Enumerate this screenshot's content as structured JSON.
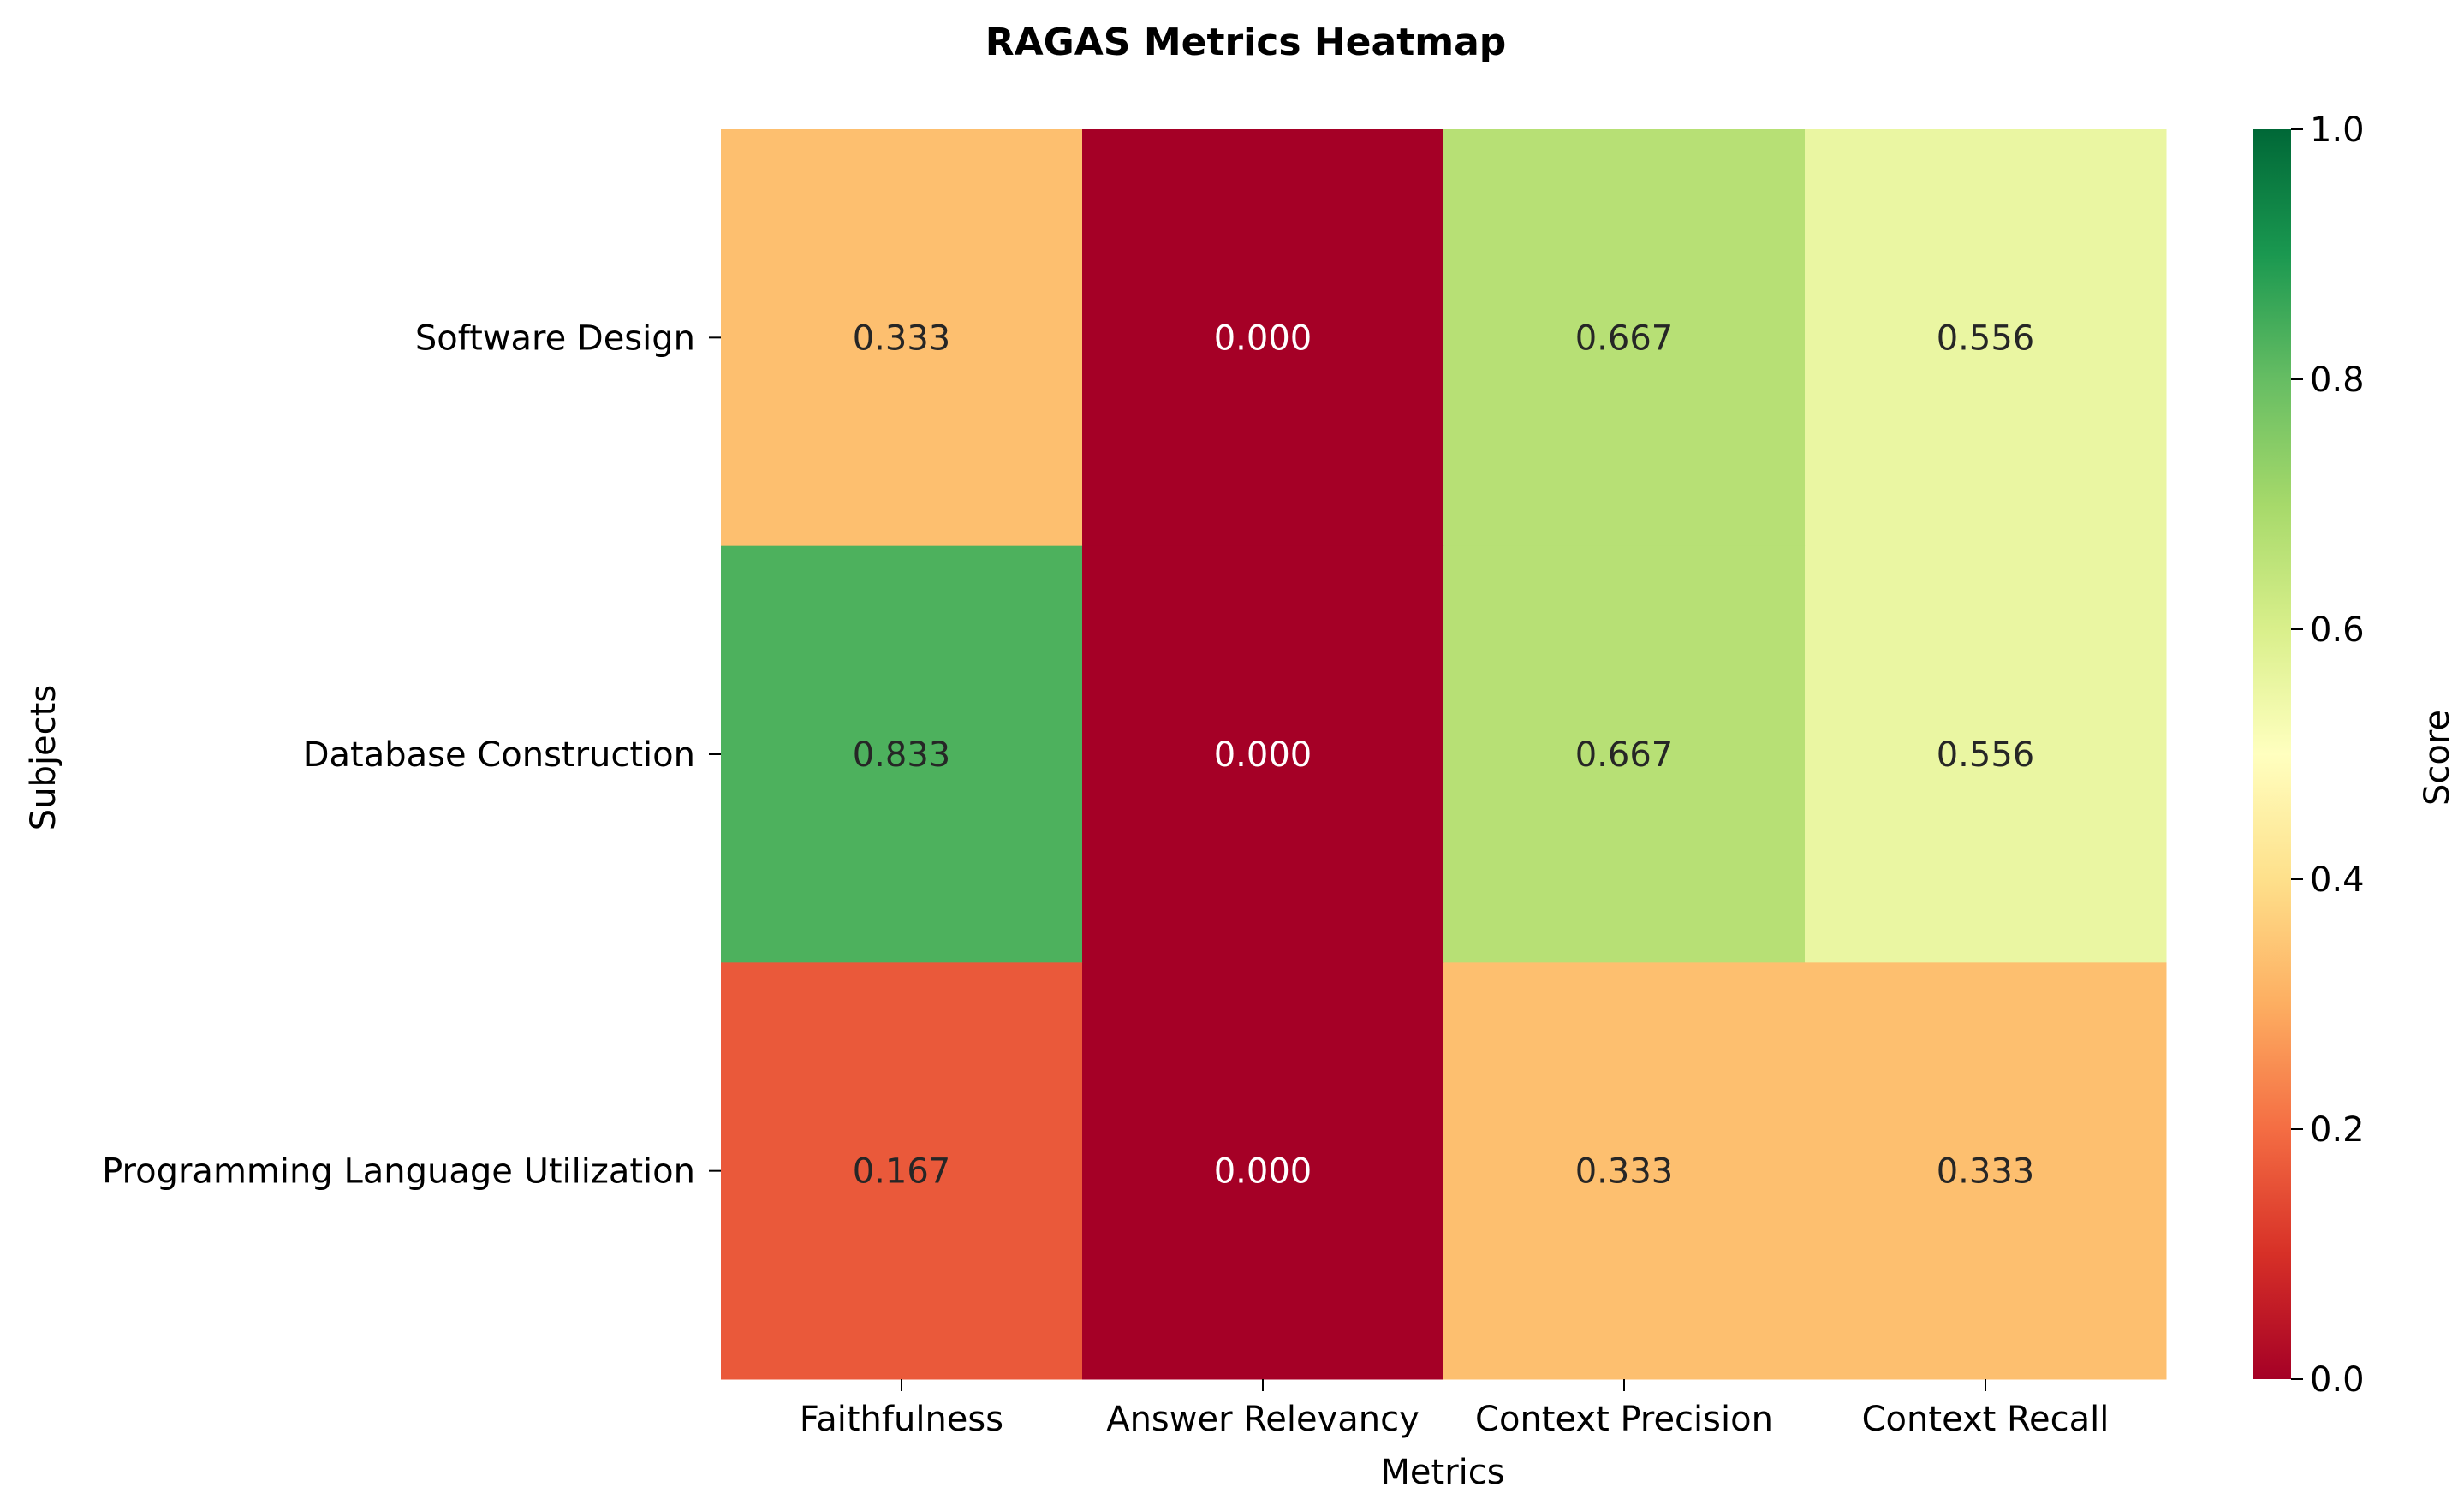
{
  "chart_data": {
    "type": "heatmap",
    "title": "RAGAS Metrics Heatmap",
    "xlabel": "Metrics",
    "ylabel": "Subjects",
    "x_categories": [
      "Faithfulness",
      "Answer Relevancy",
      "Context Precision",
      "Context Recall"
    ],
    "y_categories": [
      "Software Design",
      "Database Construction",
      "Programming Language Utilization"
    ],
    "values": [
      [
        0.333,
        0.0,
        0.667,
        0.556
      ],
      [
        0.833,
        0.0,
        0.667,
        0.556
      ],
      [
        0.167,
        0.0,
        0.333,
        0.333
      ]
    ],
    "value_labels": [
      [
        "0.333",
        "0.000",
        "0.667",
        "0.556"
      ],
      [
        "0.833",
        "0.000",
        "0.667",
        "0.556"
      ],
      [
        "0.167",
        "0.000",
        "0.333",
        "0.333"
      ]
    ],
    "colormap": "RdYlGn",
    "vmin": 0,
    "vmax": 1,
    "colorbar": {
      "label": "Score",
      "ticks": [
        "0.0",
        "0.2",
        "0.4",
        "0.6",
        "0.8",
        "1.0"
      ],
      "tick_values": [
        0,
        0.2,
        0.4,
        0.6,
        0.8,
        1.0
      ],
      "stops": [
        "#a50026",
        "#d73027",
        "#f46d43",
        "#fdae61",
        "#fee08b",
        "#ffffbf",
        "#d9ef8b",
        "#a6d96a",
        "#66bd63",
        "#1a9850",
        "#006837"
      ]
    }
  }
}
